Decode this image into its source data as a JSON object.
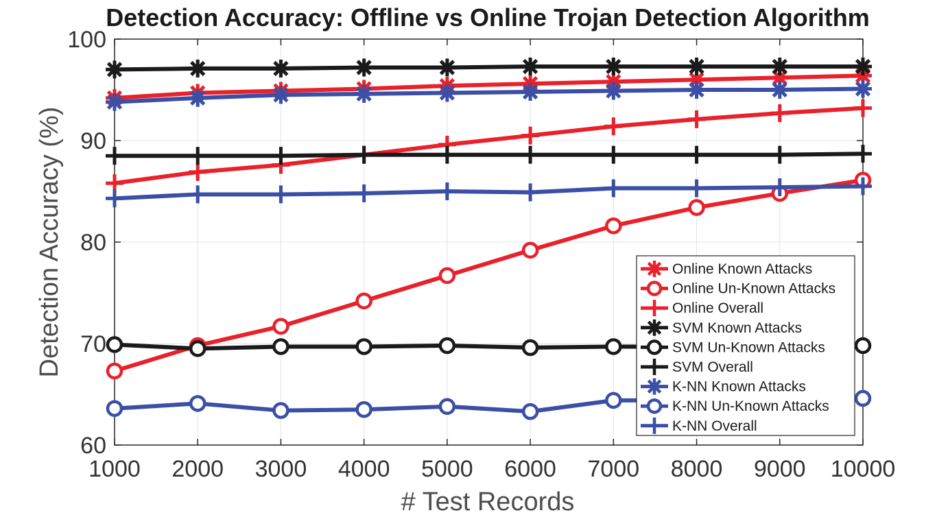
{
  "chart_data": {
    "type": "line",
    "title": "Detection Accuracy: Offline vs Online Trojan Detection Algorithm",
    "xlabel": "# Test Records",
    "ylabel": "Detection Accuracy (%)",
    "x": [
      1000,
      2000,
      3000,
      4000,
      5000,
      6000,
      7000,
      8000,
      9000,
      10000
    ],
    "xlim": [
      1000,
      10000
    ],
    "ylim": [
      60,
      100
    ],
    "xticks": [
      "1000",
      "2000",
      "3000",
      "4000",
      "5000",
      "6000",
      "7000",
      "8000",
      "9000",
      "10000"
    ],
    "yticks": [
      "60",
      "70",
      "80",
      "90",
      "100"
    ],
    "grid": true,
    "legend_position": "bottom-right",
    "series": [
      {
        "name": "Online Known Attacks",
        "color": "#e8212b",
        "marker": "asterisk",
        "values": [
          94.2,
          94.7,
          94.9,
          95.1,
          95.4,
          95.6,
          95.8,
          96.0,
          96.2,
          96.4
        ]
      },
      {
        "name": "Online Un-Known Attacks",
        "color": "#e8212b",
        "marker": "circle",
        "values": [
          67.3,
          69.8,
          71.7,
          74.2,
          76.7,
          79.2,
          81.6,
          83.4,
          84.8,
          86.1
        ]
      },
      {
        "name": "Online Overall",
        "color": "#e8212b",
        "marker": "plus",
        "values": [
          85.8,
          86.9,
          87.6,
          88.6,
          89.6,
          90.5,
          91.4,
          92.1,
          92.7,
          93.2
        ]
      },
      {
        "name": "SVM Known Attacks",
        "color": "#1a1a1a",
        "marker": "asterisk",
        "values": [
          97.0,
          97.1,
          97.1,
          97.2,
          97.2,
          97.3,
          97.3,
          97.3,
          97.3,
          97.3
        ]
      },
      {
        "name": "SVM Un-Known Attacks",
        "color": "#1a1a1a",
        "marker": "circle",
        "values": [
          69.9,
          69.5,
          69.7,
          69.7,
          69.8,
          69.6,
          69.7,
          69.7,
          69.8,
          69.8
        ]
      },
      {
        "name": "SVM Overall",
        "color": "#1a1a1a",
        "marker": "plus",
        "values": [
          88.5,
          88.5,
          88.5,
          88.6,
          88.6,
          88.6,
          88.6,
          88.6,
          88.6,
          88.7
        ]
      },
      {
        "name": "K-NN Known Attacks",
        "color": "#3a4fa5",
        "marker": "asterisk",
        "values": [
          93.8,
          94.2,
          94.5,
          94.6,
          94.7,
          94.8,
          94.9,
          95.0,
          95.0,
          95.1
        ]
      },
      {
        "name": "K-NN Un-Known Attacks",
        "color": "#3a4fa5",
        "marker": "circle",
        "values": [
          63.6,
          64.1,
          63.4,
          63.5,
          63.8,
          63.3,
          64.4,
          64.4,
          64.5,
          64.6
        ]
      },
      {
        "name": "K-NN Overall",
        "color": "#3a4fa5",
        "marker": "plus",
        "values": [
          84.3,
          84.7,
          84.7,
          84.8,
          85.0,
          84.9,
          85.3,
          85.3,
          85.4,
          85.5
        ]
      }
    ]
  }
}
